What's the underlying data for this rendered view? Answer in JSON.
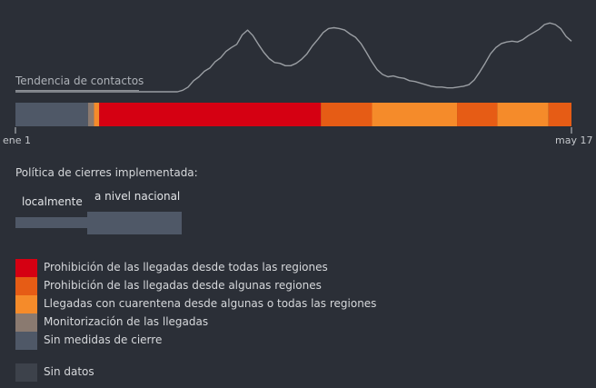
{
  "chart_data": {
    "type": "area",
    "trend": {
      "label": "Tendencia de contactos",
      "values": [
        0.0,
        0.0,
        0.0,
        0.0,
        0.0,
        0.0,
        0.0,
        0.0,
        0.0,
        0.0,
        0.0,
        0.0,
        0.0,
        0.0,
        0.0,
        0.0,
        0.0,
        0.0,
        0.0,
        0.0,
        0.0,
        0.0,
        0.0,
        0.0,
        0.0,
        0.0,
        0.0,
        0.0,
        0.0,
        0.0,
        0.0,
        0.02,
        0.06,
        0.14,
        0.19,
        0.26,
        0.3,
        0.38,
        0.43,
        0.51,
        0.56,
        0.6,
        0.72,
        0.78,
        0.71,
        0.6,
        0.5,
        0.42,
        0.37,
        0.36,
        0.33,
        0.33,
        0.36,
        0.41,
        0.48,
        0.58,
        0.66,
        0.75,
        0.8,
        0.81,
        0.8,
        0.78,
        0.73,
        0.69,
        0.61,
        0.5,
        0.38,
        0.28,
        0.22,
        0.19,
        0.2,
        0.18,
        0.17,
        0.14,
        0.13,
        0.11,
        0.09,
        0.07,
        0.06,
        0.06,
        0.05,
        0.05,
        0.06,
        0.07,
        0.09,
        0.15,
        0.25,
        0.36,
        0.48,
        0.56,
        0.61,
        0.63,
        0.64,
        0.63,
        0.66,
        0.71,
        0.75,
        0.79,
        0.85,
        0.87,
        0.85,
        0.8,
        0.7,
        0.64
      ]
    },
    "timeline": {
      "days": 138,
      "segments": [
        {
          "category": "none",
          "start": 0,
          "end": 18
        },
        {
          "category": "monitoring",
          "start": 18,
          "end": 19.5
        },
        {
          "category": "quarantine",
          "start": 19.5,
          "end": 20.8
        },
        {
          "category": "ban_all",
          "start": 20.8,
          "end": 75.8
        },
        {
          "category": "ban_some",
          "start": 75.8,
          "end": 88.5
        },
        {
          "category": "quarantine",
          "start": 88.5,
          "end": 109.6
        },
        {
          "category": "ban_some",
          "start": 109.6,
          "end": 119.6
        },
        {
          "category": "quarantine",
          "start": 119.6,
          "end": 132.3
        },
        {
          "category": "ban_some",
          "start": 132.3,
          "end": 138
        }
      ]
    },
    "x_tick_labels": [
      "ene 1",
      "may 17"
    ],
    "colors": {
      "trend_line": "#9a9ea3",
      "ban_all": "#d50012",
      "ban_some": "#e65c15",
      "quarantine": "#f58b2a",
      "monitoring": "#8a7a70",
      "none": "#4f5867",
      "no_data": "#3d424b"
    }
  },
  "policy": {
    "title": "Política de cierres implementada:",
    "scope_local": "localmente",
    "scope_national": "a nivel nacional"
  },
  "legend": [
    {
      "key": "ban_all",
      "label": "Prohibición de las llegadas desde todas las regiones",
      "color": "#d50012"
    },
    {
      "key": "ban_some",
      "label": "Prohibición de las llegadas desde algunas regiones",
      "color": "#e65c15"
    },
    {
      "key": "quarantine",
      "label": "Llegadas con cuarentena desde algunas o todas las regiones",
      "color": "#f58b2a"
    },
    {
      "key": "monitoring",
      "label": "Monitorización de las llegadas",
      "color": "#8a7a70"
    },
    {
      "key": "none",
      "label": "Sin medidas de cierre",
      "color": "#4f5867"
    },
    {
      "key": "no_data",
      "label": "Sin datos",
      "color": "#3d424b"
    }
  ]
}
